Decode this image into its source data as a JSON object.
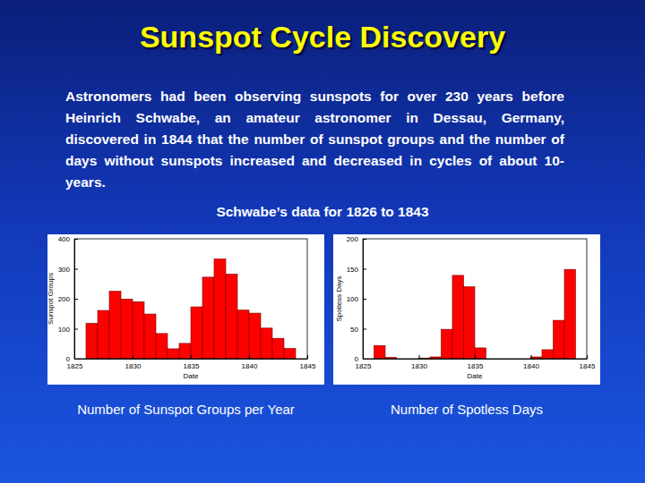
{
  "slide": {
    "title": "Sunspot Cycle Discovery",
    "text": "Astronomers had been observing sunspots for over 230 years before Heinrich Schwabe, an amateur astronomer in Dessau, Germany, discovered in 1844 that the number of sunspot groups and the number of days without sunspots increased and decreased in cycles of about 10-years.",
    "subtitle": "Schwabe’s data for 1826 to 1843"
  },
  "chart_data": [
    {
      "type": "histogram",
      "title": "Number of Sunspot Groups per Year",
      "x_label": "Date",
      "y_label": "Sunspot Groups",
      "bins": [
        1826,
        1827,
        1828,
        1829,
        1830,
        1831,
        1832,
        1833,
        1834,
        1835,
        1836,
        1837,
        1838,
        1839,
        1840,
        1841,
        1842,
        1843,
        1844
      ],
      "values": [
        118,
        161,
        225,
        199,
        190,
        149,
        84,
        33,
        51,
        173,
        272,
        333,
        282,
        162,
        152,
        102,
        68,
        34
      ],
      "color": "#ff0000",
      "xlim": [
        1825,
        1845
      ],
      "xticks": [
        1825,
        1830,
        1835,
        1840,
        1845
      ],
      "ylim": [
        0,
        400
      ],
      "yticks": [
        0,
        100,
        200,
        300,
        400
      ]
    },
    {
      "type": "histogram",
      "title": "Number of Spotless Days",
      "x_label": "Date",
      "y_label": "Spotless Days",
      "bins": [
        1826,
        1827,
        1828,
        1829,
        1830,
        1831,
        1832,
        1833,
        1834,
        1835,
        1836,
        1837,
        1838,
        1839,
        1840,
        1841,
        1842,
        1843,
        1844
      ],
      "values": [
        22,
        2,
        0,
        0,
        1,
        3,
        49,
        139,
        120,
        18,
        0,
        0,
        0,
        0,
        3,
        15,
        64,
        149
      ],
      "color": "#ff0000",
      "xlim": [
        1825,
        1845
      ],
      "xticks": [
        1825,
        1830,
        1835,
        1840,
        1845
      ],
      "ylim": [
        0,
        200
      ],
      "yticks": [
        0,
        50,
        100,
        150,
        200
      ]
    }
  ]
}
